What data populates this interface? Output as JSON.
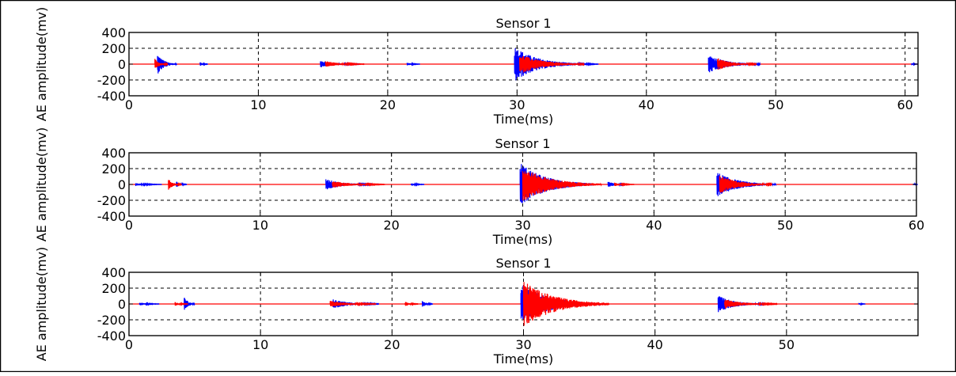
{
  "chart_data": [
    {
      "type": "line",
      "title": "Sensor 1",
      "xlabel": "Time(ms)",
      "ylabel": "AE amplitude(mv)",
      "xlim": [
        0,
        61
      ],
      "ylim": [
        -400,
        400
      ],
      "x_ticks": [
        0,
        10,
        20,
        30,
        40,
        50,
        60
      ],
      "y_ticks": [
        -400,
        -200,
        0,
        200,
        400
      ],
      "grid": true,
      "series": [
        {
          "color": "#0000ff",
          "bursts": [
            {
              "t": 2.2,
              "amp": 130,
              "dur": 1.5
            },
            {
              "t": 5.5,
              "amp": 25,
              "dur": 0.6
            },
            {
              "t": 14.8,
              "amp": 45,
              "dur": 3.0
            },
            {
              "t": 21.5,
              "amp": 20,
              "dur": 1.0
            },
            {
              "t": 29.8,
              "amp": 230,
              "dur": 5.0
            },
            {
              "t": 34.8,
              "amp": 30,
              "dur": 1.5
            },
            {
              "t": 44.8,
              "amp": 120,
              "dur": 4.0
            },
            {
              "t": 60.5,
              "amp": 15,
              "dur": 0.5
            }
          ]
        },
        {
          "color": "#ff0000",
          "bursts": [
            {
              "t": 2.0,
              "amp": 70,
              "dur": 1.0
            },
            {
              "t": 15.2,
              "amp": 40,
              "dur": 3.0
            },
            {
              "t": 30.2,
              "amp": 130,
              "dur": 5.0
            },
            {
              "t": 45.5,
              "amp": 80,
              "dur": 3.0
            }
          ]
        }
      ]
    },
    {
      "type": "line",
      "title": "Sensor 1",
      "xlabel": "Time(ms)",
      "ylabel": "AE amplitude(mv)",
      "xlim": [
        0,
        60
      ],
      "ylim": [
        -400,
        400
      ],
      "x_ticks": [
        0,
        10,
        20,
        30,
        40,
        50,
        60
      ],
      "y_ticks": [
        -400,
        -200,
        0,
        200,
        400
      ],
      "grid": true,
      "series": [
        {
          "color": "#0000ff",
          "bursts": [
            {
              "t": 0.5,
              "amp": 20,
              "dur": 2.0
            },
            {
              "t": 3.6,
              "amp": 40,
              "dur": 0.8
            },
            {
              "t": 15.0,
              "amp": 70,
              "dur": 3.5
            },
            {
              "t": 21.5,
              "amp": 20,
              "dur": 1.0
            },
            {
              "t": 29.8,
              "amp": 280,
              "dur": 5.5
            },
            {
              "t": 36.5,
              "amp": 40,
              "dur": 1.5
            },
            {
              "t": 44.8,
              "amp": 160,
              "dur": 4.5
            },
            {
              "t": 59.8,
              "amp": 15,
              "dur": 0.3
            }
          ]
        },
        {
          "color": "#ff0000",
          "bursts": [
            {
              "t": 3.0,
              "amp": 70,
              "dur": 1.0
            },
            {
              "t": 15.5,
              "amp": 45,
              "dur": 4.0
            },
            {
              "t": 30.0,
              "amp": 220,
              "dur": 6.0
            },
            {
              "t": 45.0,
              "amp": 120,
              "dur": 4.0
            },
            {
              "t": 37.0,
              "amp": 25,
              "dur": 1.5
            }
          ]
        }
      ]
    },
    {
      "type": "line",
      "title": "Sensor 1",
      "xlabel": "Time(ms)",
      "ylabel": "AE amplitude(mv)",
      "xlim": [
        0,
        60
      ],
      "ylim": [
        -400,
        400
      ],
      "x_ticks": [
        0,
        10,
        20,
        30,
        40,
        50
      ],
      "y_ticks": [
        -400,
        -200,
        0,
        200,
        400
      ],
      "grid": true,
      "series": [
        {
          "color": "#0000ff",
          "bursts": [
            {
              "t": 0.8,
              "amp": 20,
              "dur": 1.5
            },
            {
              "t": 4.2,
              "amp": 100,
              "dur": 0.8
            },
            {
              "t": 15.5,
              "amp": 60,
              "dur": 3.5
            },
            {
              "t": 22.3,
              "amp": 45,
              "dur": 0.8
            },
            {
              "t": 29.8,
              "amp": 260,
              "dur": 6.0
            },
            {
              "t": 44.8,
              "amp": 110,
              "dur": 3.5
            },
            {
              "t": 55.5,
              "amp": 15,
              "dur": 0.5
            }
          ]
        },
        {
          "color": "#ff0000",
          "bursts": [
            {
              "t": 3.5,
              "amp": 25,
              "dur": 1.0
            },
            {
              "t": 15.3,
              "amp": 45,
              "dur": 3.5
            },
            {
              "t": 21.0,
              "amp": 30,
              "dur": 1.0
            },
            {
              "t": 30.0,
              "amp": 300,
              "dur": 6.5
            },
            {
              "t": 45.3,
              "amp": 60,
              "dur": 4.0
            }
          ]
        }
      ]
    }
  ]
}
